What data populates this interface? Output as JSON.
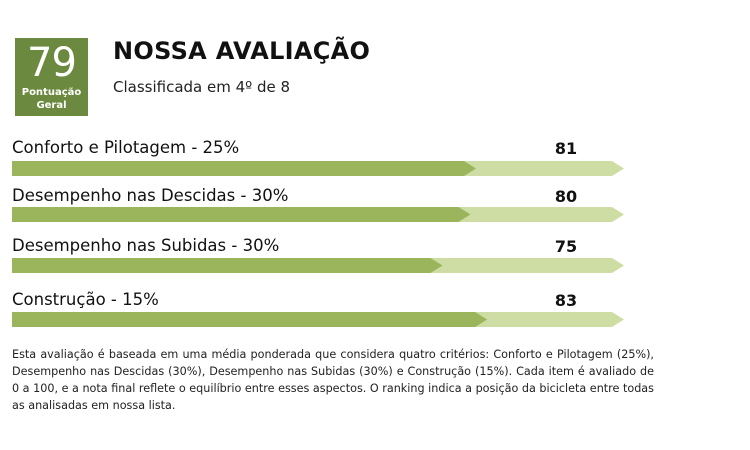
{
  "header": {
    "score": "79",
    "score_caption_line1": "Pontuação",
    "score_caption_line2": "Geral",
    "title": "NOSSA AVALIAÇÃO",
    "subtitle": "Classificada em 4º de 8"
  },
  "colors": {
    "accent": "#6b8a3f",
    "bar_fill": "#9ab55c",
    "bar_track": "#cedda3"
  },
  "chart_data": {
    "type": "bar",
    "orientation": "horizontal",
    "categories": [
      "Conforto e Pilotagem - 25%",
      "Desempenho nas Descidas - 30%",
      "Desempenho nas Subidas - 30%",
      "Construção - 15%"
    ],
    "values": [
      81,
      80,
      75,
      83
    ],
    "value_labels": [
      "81",
      "80",
      "75",
      "83"
    ],
    "xlim": [
      0,
      100
    ],
    "grid": false
  },
  "footnote": "Esta avaliação é baseada em uma média ponderada que considera quatro critérios: Conforto e Pilotagem (25%), Desempenho nas Descidas (30%), Desempenho nas Subidas (30%) e Construção (15%). Cada item é avaliado de 0 a 100, e a nota final reflete o equilíbrio entre esses aspectos. O ranking indica a posição da bicicleta entre todas as analisadas em nossa lista."
}
